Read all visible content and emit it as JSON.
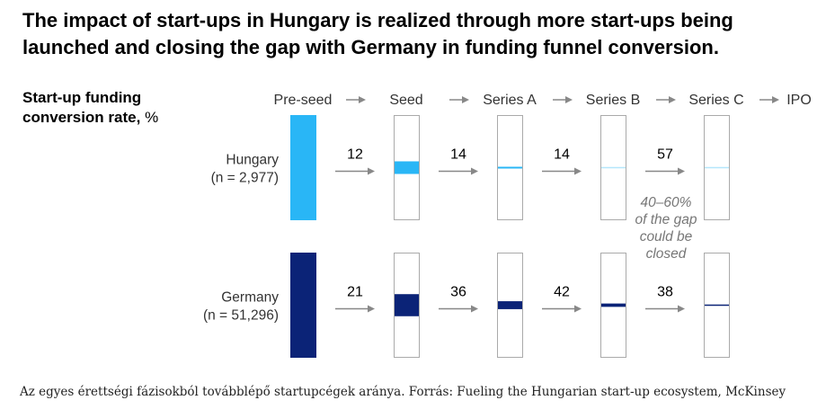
{
  "title": "The impact of start-ups in Hungary is realized through more start-ups being launched and closing the gap with Germany in funding funnel conversion.",
  "caption": "Az egyes érettségi fázisokból továbblépő startupcégek aránya. Forrás: Fueling the Hungarian start-up ecosystem, McKinsey",
  "chart_data": {
    "type": "bar",
    "ylabel_bold": "Start-up funding conversion rate,",
    "ylabel_unit": "%",
    "stages": [
      "Pre-seed",
      "Seed",
      "Series A",
      "Series B",
      "Series C",
      "IPO"
    ],
    "series": [
      {
        "name_line1": "Hungary",
        "name_line2": "(n = 2,977)",
        "color": "#29b6f6",
        "rates": [
          12,
          14,
          14,
          57
        ],
        "remaining": [
          100,
          12,
          1.68,
          0.24,
          0.13
        ]
      },
      {
        "name_line1": "Germany",
        "name_line2": "(n = 51,296)",
        "color": "#0b2377",
        "rates": [
          21,
          36,
          42,
          38
        ],
        "remaining": [
          100,
          21,
          7.56,
          3.18,
          1.21
        ]
      }
    ],
    "annotation": [
      "40–60%",
      "of the gap",
      "could be",
      "closed"
    ],
    "colors": {
      "arrow": "#888888",
      "box_border": "#aaaaaa"
    }
  }
}
